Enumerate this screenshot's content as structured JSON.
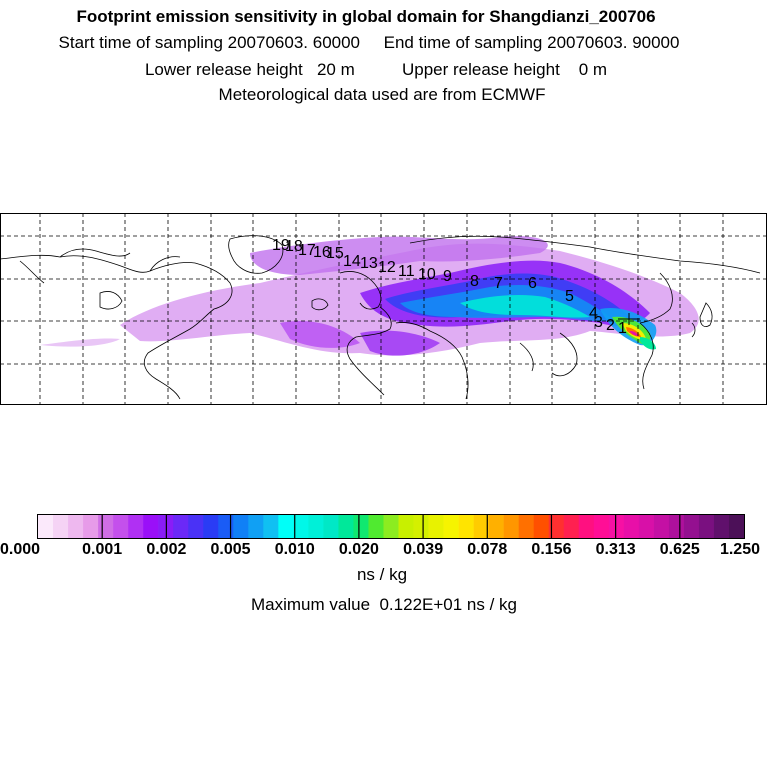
{
  "header": {
    "title": "Footprint emission sensitivity in global domain for Shangdianzi_200706",
    "start_label": "Start time of sampling 20070603. 60000",
    "end_label": "End time of sampling 20070603. 90000",
    "lower_label": "Lower release height   20 m",
    "upper_label": "Upper release height    0 m",
    "met_label": "Meteorological data used are from ECMWF"
  },
  "map": {
    "trajectory_labels": [
      "1",
      "2",
      "3",
      "4",
      "5",
      "6",
      "7",
      "8",
      "9",
      "10",
      "11",
      "12",
      "13",
      "14",
      "15",
      "16",
      "17",
      "18",
      "19"
    ],
    "colors": {
      "land_outline": "#000000",
      "grid": "#000000",
      "background": "#ffffff"
    }
  },
  "colorbar": {
    "colors": [
      "#fbe9fb",
      "#f5d3f5",
      "#eeb8ef",
      "#e79be9",
      "#d06ee6",
      "#c450ec",
      "#b030f3",
      "#9a10f8",
      "#8a1cf7",
      "#6b29f7",
      "#4a32f6",
      "#2a3cf5",
      "#1a5cf6",
      "#1080f6",
      "#10a0f4",
      "#10c0f2",
      "#00fff8",
      "#00f7e8",
      "#00f0d8",
      "#00e8c6",
      "#00e89a",
      "#10e870",
      "#50ea30",
      "#8cec20",
      "#c8f000",
      "#d4f000",
      "#e8f200",
      "#f6f400",
      "#ffe400",
      "#ffcc00",
      "#ffb000",
      "#ff9600",
      "#ff7000",
      "#ff5000",
      "#ff3030",
      "#ff2050",
      "#ff1080",
      "#ff0e96",
      "#f710a4",
      "#e80fa8",
      "#d810a8",
      "#c410a4",
      "#ae109c",
      "#941090",
      "#7a1080",
      "#60106c",
      "#4c1058"
    ],
    "tick_labels": [
      "0.000",
      "0.001",
      "0.002",
      "0.005",
      "0.010",
      "0.020",
      "0.039",
      "0.078",
      "0.156",
      "0.313",
      "0.625",
      "1.250"
    ],
    "unit": "ns / kg",
    "max_label": "Maximum value  0.122E+01 ns / kg"
  }
}
